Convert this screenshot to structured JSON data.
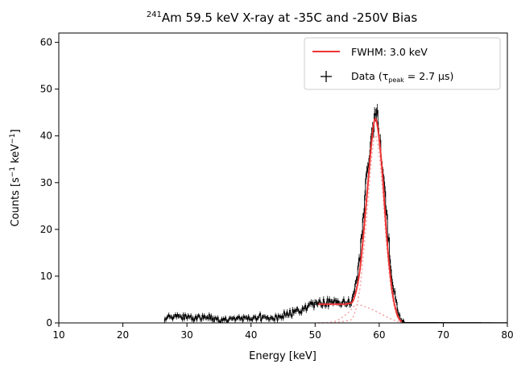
{
  "chart_data": {
    "type": "line",
    "title_sup": "241",
    "title_main": "Am 59.5 keV X-ray at -35C and -250V Bias",
    "xlabel": "Energy [keV]",
    "ylabel_pre": "Counts [s",
    "ylabel_sup1": "−1",
    "ylabel_mid": " keV",
    "ylabel_sup2": "−1",
    "ylabel_post": "]",
    "xlim": [
      10,
      80
    ],
    "ylim": [
      0,
      62
    ],
    "xticks": [
      10,
      20,
      30,
      40,
      50,
      60,
      70,
      80
    ],
    "yticks": [
      0,
      10,
      20,
      30,
      40,
      50,
      60
    ],
    "grid": false,
    "legend_position": "top-right",
    "legend": {
      "fit_label": "FWHM: 3.0 keV",
      "data_label_pre": "Data (τ",
      "data_label_sub": "peak",
      "data_label_post": " = 2.7 μs)"
    },
    "colors": {
      "fit": "#ee3333",
      "components": "#f4a6a6",
      "data": "#000000"
    },
    "series": [
      {
        "name": "Data",
        "style": "black step with error bars",
        "x_range": [
          26.5,
          80
        ],
        "envelope": [
          {
            "x": 10,
            "y": 0
          },
          {
            "x": 26.4,
            "y": 0
          },
          {
            "x": 26.5,
            "y": 1.2
          },
          {
            "x": 30,
            "y": 1.2
          },
          {
            "x": 33,
            "y": 1.0
          },
          {
            "x": 36,
            "y": 0.9
          },
          {
            "x": 40,
            "y": 1.0
          },
          {
            "x": 44,
            "y": 1.4
          },
          {
            "x": 46,
            "y": 2.0
          },
          {
            "x": 48,
            "y": 2.8
          },
          {
            "x": 49,
            "y": 3.5
          },
          {
            "x": 50,
            "y": 4.0
          },
          {
            "x": 52,
            "y": 4.1
          },
          {
            "x": 54,
            "y": 4.0
          },
          {
            "x": 55,
            "y": 4.2
          },
          {
            "x": 56,
            "y": 5.5
          },
          {
            "x": 57,
            "y": 14
          },
          {
            "x": 58,
            "y": 30
          },
          {
            "x": 59,
            "y": 43
          },
          {
            "x": 59.4,
            "y": 46
          },
          {
            "x": 60,
            "y": 41
          },
          {
            "x": 61,
            "y": 26
          },
          {
            "x": 62,
            "y": 9
          },
          {
            "x": 63,
            "y": 1.8
          },
          {
            "x": 63.5,
            "y": 0.5
          },
          {
            "x": 64,
            "y": 0.1
          },
          {
            "x": 80,
            "y": 0.05
          }
        ]
      },
      {
        "name": "FWHM: 3.0 keV",
        "style": "red solid fit",
        "points": [
          {
            "x": 50.5,
            "y": 4.0
          },
          {
            "x": 54,
            "y": 4.0
          },
          {
            "x": 55,
            "y": 4.1
          },
          {
            "x": 56,
            "y": 5.0
          },
          {
            "x": 57,
            "y": 11.5
          },
          {
            "x": 58,
            "y": 26
          },
          {
            "x": 58.8,
            "y": 38.5
          },
          {
            "x": 59.3,
            "y": 43.5
          },
          {
            "x": 59.8,
            "y": 41.5
          },
          {
            "x": 60.5,
            "y": 32
          },
          {
            "x": 61.2,
            "y": 18
          },
          {
            "x": 62,
            "y": 7
          },
          {
            "x": 62.8,
            "y": 1.8
          },
          {
            "x": 63.5,
            "y": 0.2
          }
        ]
      },
      {
        "name": "Peak component",
        "style": "pink dotted",
        "points": [
          {
            "x": 53,
            "y": 0
          },
          {
            "x": 55,
            "y": 0.5
          },
          {
            "x": 56,
            "y": 1.5
          },
          {
            "x": 57,
            "y": 7.5
          },
          {
            "x": 58,
            "y": 22
          },
          {
            "x": 58.8,
            "y": 35
          },
          {
            "x": 59.3,
            "y": 40
          },
          {
            "x": 59.8,
            "y": 38
          },
          {
            "x": 60.5,
            "y": 29
          },
          {
            "x": 61.2,
            "y": 16
          },
          {
            "x": 62,
            "y": 6
          },
          {
            "x": 62.8,
            "y": 1.5
          },
          {
            "x": 63.5,
            "y": 0.2
          }
        ]
      },
      {
        "name": "Tail component",
        "style": "pink dotted",
        "points": [
          {
            "x": 50.5,
            "y": 0
          },
          {
            "x": 53,
            "y": 0.3
          },
          {
            "x": 55,
            "y": 2.0
          },
          {
            "x": 56.3,
            "y": 3.8
          },
          {
            "x": 57.5,
            "y": 3.6
          },
          {
            "x": 59,
            "y": 2.8
          },
          {
            "x": 61,
            "y": 1.4
          },
          {
            "x": 62.5,
            "y": 0.5
          },
          {
            "x": 63.5,
            "y": 0.1
          }
        ]
      }
    ]
  }
}
